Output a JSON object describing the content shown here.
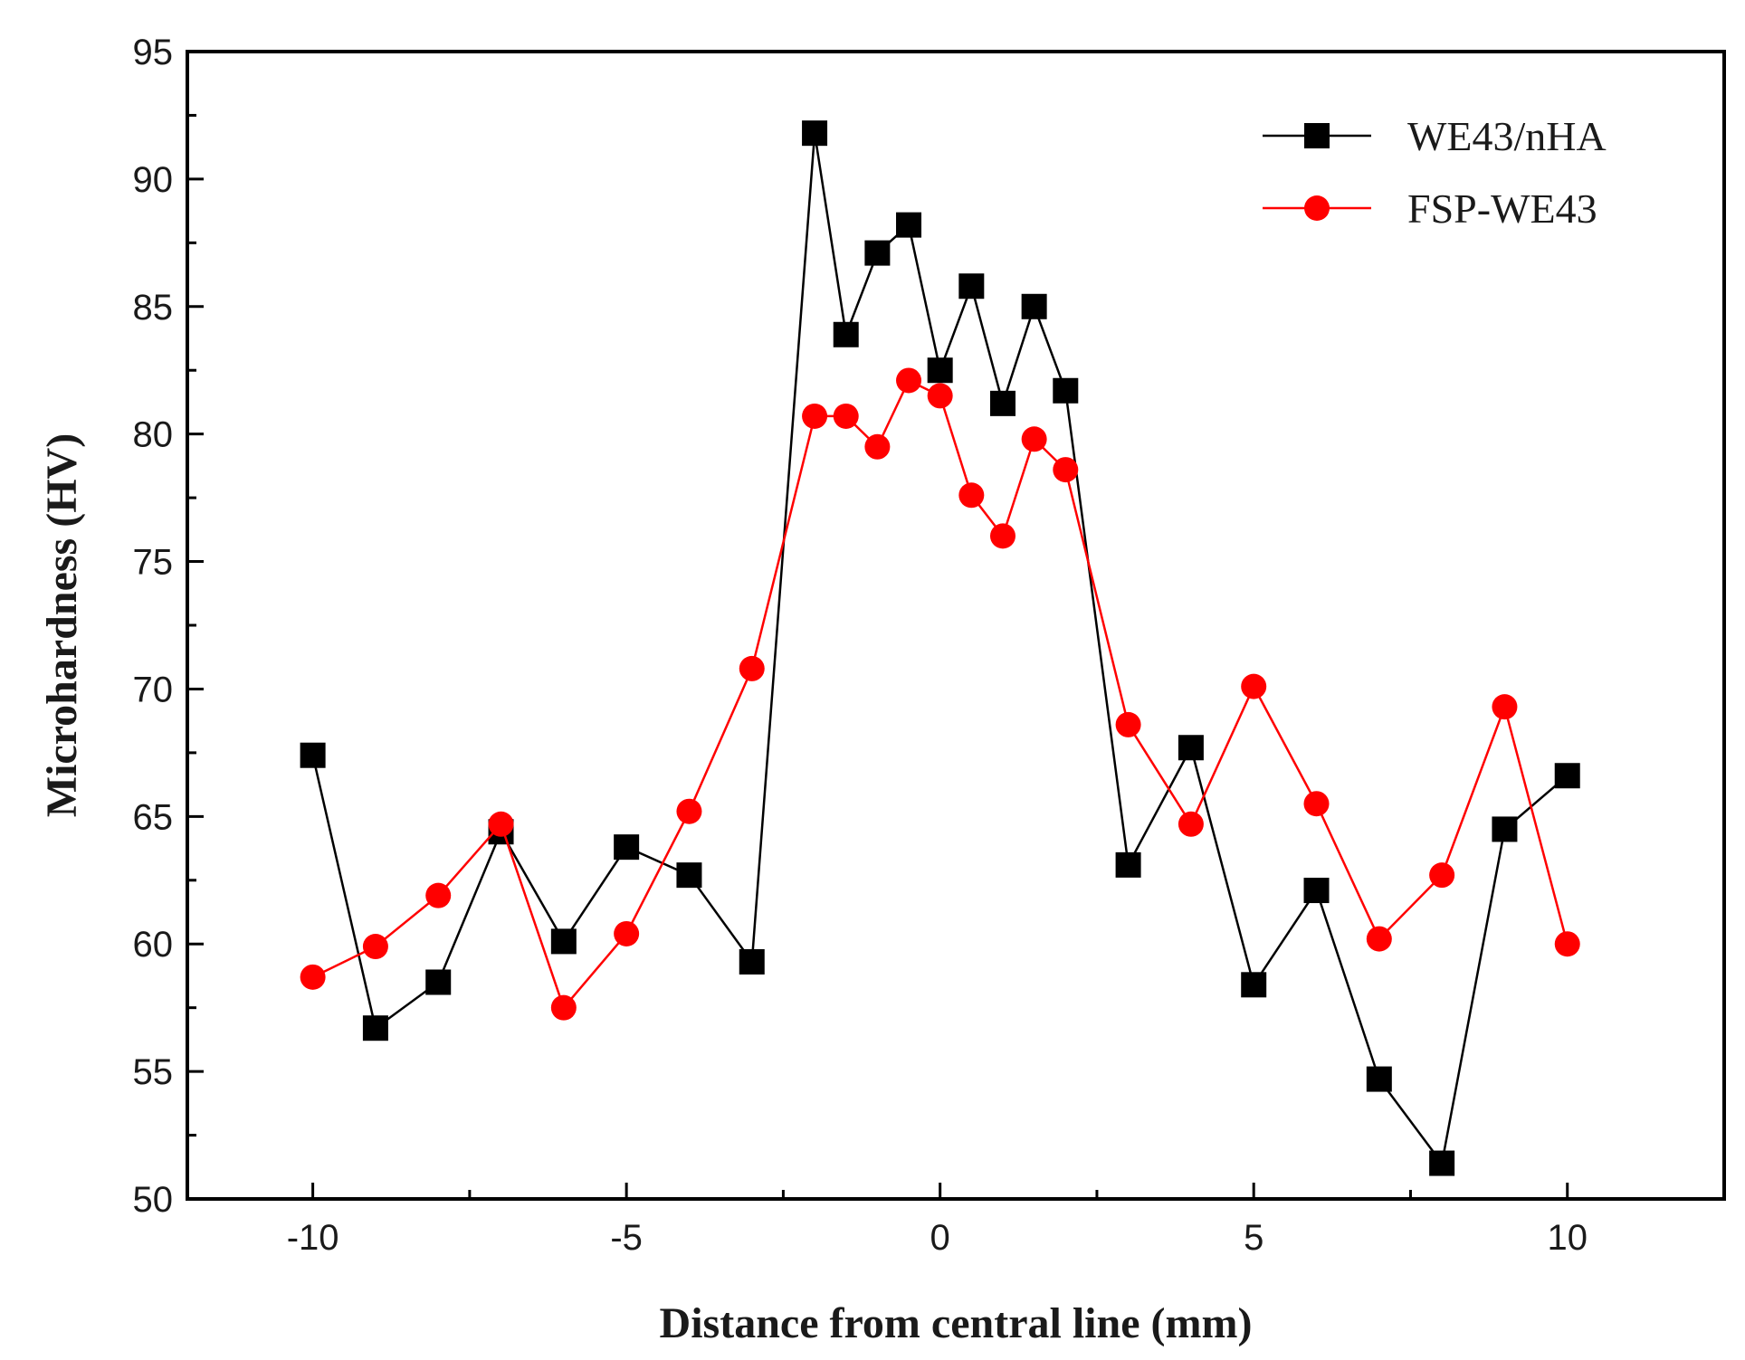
{
  "chart_data": {
    "type": "line",
    "xlabel": "Distance from central line (mm)",
    "ylabel": "Microhardness (HV)",
    "xlim": [
      -12.0,
      12.5
    ],
    "ylim": [
      50,
      95
    ],
    "xticks": [
      -10,
      -5,
      0,
      5,
      10
    ],
    "yticks": [
      50,
      55,
      60,
      65,
      70,
      75,
      80,
      85,
      90,
      95
    ],
    "grid": false,
    "legend_position": "top-right",
    "series": [
      {
        "name": "WE43/nHA",
        "color": "#000000",
        "marker": "square",
        "x": [
          -10,
          -9,
          -8,
          -7,
          -6,
          -5,
          -4,
          -3,
          -2,
          -1.5,
          -1,
          -0.5,
          0,
          0.5,
          1,
          1.5,
          2,
          3,
          4,
          5,
          6,
          7,
          8,
          9,
          10
        ],
        "y": [
          67.4,
          56.7,
          58.5,
          64.4,
          60.1,
          63.8,
          62.7,
          59.3,
          91.8,
          83.9,
          87.1,
          88.2,
          82.5,
          85.8,
          81.2,
          85.0,
          81.7,
          63.1,
          67.7,
          58.4,
          62.1,
          54.7,
          51.4,
          64.5,
          66.6
        ]
      },
      {
        "name": "FSP-WE43",
        "color": "#ff0000",
        "marker": "circle",
        "x": [
          -10,
          -9,
          -8,
          -7,
          -6,
          -5,
          -4,
          -3,
          -2,
          -1.5,
          -1,
          -0.5,
          0,
          0.5,
          1,
          1.5,
          2,
          3,
          4,
          5,
          6,
          7,
          8,
          9,
          10
        ],
        "y": [
          58.7,
          59.9,
          61.9,
          64.7,
          57.5,
          60.4,
          65.2,
          70.8,
          80.7,
          80.7,
          79.5,
          82.1,
          81.5,
          77.6,
          76.0,
          79.8,
          78.6,
          68.6,
          64.7,
          70.1,
          65.5,
          60.2,
          62.7,
          69.3,
          60.0
        ]
      }
    ]
  }
}
